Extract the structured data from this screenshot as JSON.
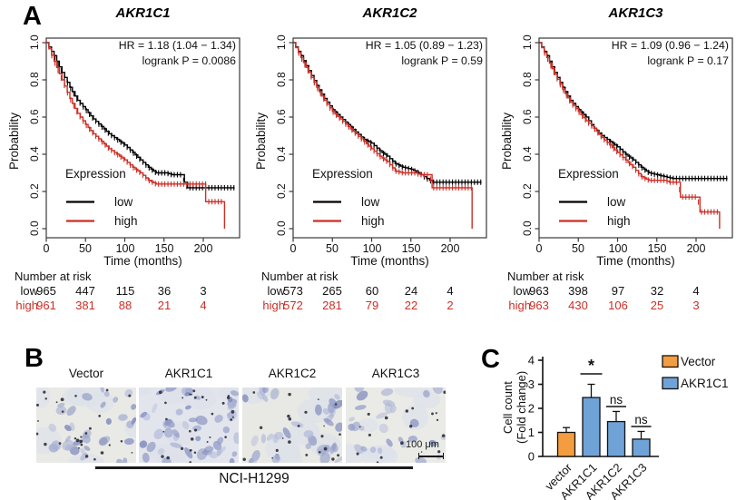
{
  "panels": {
    "a_label": "A",
    "b_label": "B",
    "c_label": "C"
  },
  "km_common": {
    "ylabel": "Probability",
    "xlabel": "Time (months)",
    "x_ticks": [
      0,
      50,
      100,
      150,
      200
    ],
    "y_ticks": [
      "0.0",
      "0.2",
      "0.4",
      "0.6",
      "0.8",
      "1.0"
    ],
    "legend_title": "Expression",
    "legend_low": "low",
    "legend_high": "high",
    "low_color": "#000000",
    "high_color": "#cc2f26",
    "risk_heading": "Number at risk"
  },
  "km_plots": [
    {
      "title": "AKR1C1",
      "hr_line": "HR = 1.18 (1.04 − 1.34)",
      "logrank_line": "logrank P = 0.0086",
      "risk": {
        "low_label": "low",
        "high_label": "high",
        "low": [
          "965",
          "447",
          "115",
          "36",
          "3"
        ],
        "high": [
          "961",
          "381",
          "88",
          "21",
          "4"
        ]
      }
    },
    {
      "title": "AKR1C2",
      "hr_line": "HR = 1.05 (0.89 − 1.23)",
      "logrank_line": "logrank P = 0.59",
      "risk": {
        "low_label": "low",
        "high_label": "high",
        "low": [
          "573",
          "265",
          "60",
          "24",
          "4"
        ],
        "high": [
          "572",
          "281",
          "79",
          "22",
          "2"
        ]
      }
    },
    {
      "title": "AKR1C3",
      "hr_line": "HR = 1.09 (0.96 − 1.24)",
      "logrank_line": "logrank P = 0.17",
      "risk": {
        "low_label": "low",
        "high_label": "high",
        "low": [
          "963",
          "398",
          "97",
          "32",
          "4"
        ],
        "high": [
          "963",
          "430",
          "106",
          "25",
          "3"
        ]
      }
    }
  ],
  "chart_data": [
    {
      "type": "line",
      "subtype": "kaplan-meier",
      "title": "AKR1C1",
      "xlabel": "Time (months)",
      "ylabel": "Probability",
      "xlim": [
        0,
        246
      ],
      "ylim": [
        0.0,
        1.0
      ],
      "grid": false,
      "legend_position": "bottom-left",
      "series": [
        {
          "name": "low",
          "color": "#000000",
          "points": [
            [
              0,
              1.0
            ],
            [
              10,
              0.93
            ],
            [
              20,
              0.84
            ],
            [
              30,
              0.76
            ],
            [
              40,
              0.69
            ],
            [
              50,
              0.64
            ],
            [
              60,
              0.59
            ],
            [
              70,
              0.55
            ],
            [
              80,
              0.51
            ],
            [
              90,
              0.48
            ],
            [
              100,
              0.45
            ],
            [
              110,
              0.41
            ],
            [
              120,
              0.37
            ],
            [
              130,
              0.33
            ],
            [
              140,
              0.3
            ],
            [
              152,
              0.3
            ],
            [
              160,
              0.29
            ],
            [
              172,
              0.29
            ],
            [
              176,
              0.25
            ],
            [
              180,
              0.22
            ],
            [
              240,
              0.22
            ]
          ]
        },
        {
          "name": "high",
          "color": "#cc2f26",
          "points": [
            [
              0,
              1.0
            ],
            [
              10,
              0.9
            ],
            [
              20,
              0.8
            ],
            [
              30,
              0.7
            ],
            [
              40,
              0.62
            ],
            [
              50,
              0.56
            ],
            [
              60,
              0.51
            ],
            [
              70,
              0.47
            ],
            [
              80,
              0.43
            ],
            [
              90,
              0.4
            ],
            [
              100,
              0.37
            ],
            [
              110,
              0.33
            ],
            [
              120,
              0.3
            ],
            [
              130,
              0.26
            ],
            [
              140,
              0.24
            ],
            [
              203,
              0.24
            ],
            [
              203,
              0.145
            ],
            [
              227,
              0.145
            ],
            [
              227,
              0.0
            ]
          ]
        }
      ]
    },
    {
      "type": "line",
      "subtype": "kaplan-meier",
      "title": "AKR1C2",
      "xlabel": "Time (months)",
      "ylabel": "Probability",
      "xlim": [
        0,
        246
      ],
      "ylim": [
        0.0,
        1.0
      ],
      "grid": false,
      "legend_position": "bottom-left",
      "series": [
        {
          "name": "low",
          "color": "#000000",
          "points": [
            [
              0,
              1.0
            ],
            [
              10,
              0.93
            ],
            [
              20,
              0.85
            ],
            [
              30,
              0.77
            ],
            [
              40,
              0.7
            ],
            [
              50,
              0.64
            ],
            [
              60,
              0.6
            ],
            [
              70,
              0.56
            ],
            [
              80,
              0.52
            ],
            [
              90,
              0.48
            ],
            [
              100,
              0.46
            ],
            [
              110,
              0.42
            ],
            [
              120,
              0.39
            ],
            [
              130,
              0.35
            ],
            [
              140,
              0.33
            ],
            [
              150,
              0.32
            ],
            [
              160,
              0.3
            ],
            [
              170,
              0.27
            ],
            [
              178,
              0.25
            ],
            [
              240,
              0.25
            ]
          ]
        },
        {
          "name": "high",
          "color": "#cc2f26",
          "points": [
            [
              0,
              1.0
            ],
            [
              10,
              0.92
            ],
            [
              20,
              0.84
            ],
            [
              30,
              0.76
            ],
            [
              40,
              0.69
            ],
            [
              50,
              0.63
            ],
            [
              60,
              0.59
            ],
            [
              70,
              0.55
            ],
            [
              80,
              0.51
            ],
            [
              90,
              0.47
            ],
            [
              100,
              0.43
            ],
            [
              110,
              0.39
            ],
            [
              120,
              0.36
            ],
            [
              130,
              0.31
            ],
            [
              140,
              0.3
            ],
            [
              155,
              0.3
            ],
            [
              162,
              0.29
            ],
            [
              174,
              0.29
            ],
            [
              177,
              0.22
            ],
            [
              228,
              0.22
            ],
            [
              228,
              0.0
            ]
          ]
        }
      ]
    },
    {
      "type": "line",
      "subtype": "kaplan-meier",
      "title": "AKR1C3",
      "xlabel": "Time (months)",
      "ylabel": "Probability",
      "xlim": [
        0,
        246
      ],
      "ylim": [
        0.0,
        1.0
      ],
      "grid": false,
      "legend_position": "bottom-left",
      "series": [
        {
          "name": "low",
          "color": "#000000",
          "points": [
            [
              0,
              1.0
            ],
            [
              10,
              0.93
            ],
            [
              20,
              0.84
            ],
            [
              30,
              0.76
            ],
            [
              40,
              0.69
            ],
            [
              50,
              0.64
            ],
            [
              60,
              0.6
            ],
            [
              70,
              0.54
            ],
            [
              80,
              0.5
            ],
            [
              90,
              0.47
            ],
            [
              100,
              0.44
            ],
            [
              110,
              0.4
            ],
            [
              120,
              0.37
            ],
            [
              130,
              0.33
            ],
            [
              140,
              0.3
            ],
            [
              150,
              0.29
            ],
            [
              160,
              0.28
            ],
            [
              170,
              0.27
            ],
            [
              240,
              0.27
            ]
          ]
        },
        {
          "name": "high",
          "color": "#cc2f26",
          "points": [
            [
              0,
              1.0
            ],
            [
              10,
              0.92
            ],
            [
              20,
              0.83
            ],
            [
              30,
              0.75
            ],
            [
              40,
              0.68
            ],
            [
              50,
              0.63
            ],
            [
              60,
              0.58
            ],
            [
              70,
              0.54
            ],
            [
              80,
              0.49
            ],
            [
              90,
              0.45
            ],
            [
              100,
              0.41
            ],
            [
              110,
              0.37
            ],
            [
              120,
              0.33
            ],
            [
              130,
              0.28
            ],
            [
              140,
              0.26
            ],
            [
              160,
              0.26
            ],
            [
              166,
              0.25
            ],
            [
              178,
              0.25
            ],
            [
              180,
              0.17
            ],
            [
              202,
              0.17
            ],
            [
              205,
              0.09
            ],
            [
              228,
              0.09
            ],
            [
              230,
              0.0
            ]
          ]
        }
      ]
    },
    {
      "type": "bar",
      "categories": [
        "vector",
        "AKR1C1",
        "AKR1C2",
        "AKR1C3"
      ],
      "values": [
        1.0,
        2.45,
        1.45,
        0.72
      ],
      "errors": [
        0.2,
        0.55,
        0.42,
        0.32
      ],
      "bar_colors": [
        "#f49c40",
        "#6fa3d8",
        "#6fa3d8",
        "#6fa3d8"
      ],
      "significance": [
        "",
        "*",
        "ns",
        "ns"
      ],
      "title": "",
      "ylabel_line1": "Cell count",
      "ylabel_line2": "(Fold change)",
      "ylim": [
        0,
        4
      ],
      "y_ticks": [
        "0",
        "1",
        "2",
        "3",
        "4"
      ],
      "grid": false,
      "legend_position": "top-right",
      "legend": [
        {
          "label": "Vector",
          "color": "#f49c40"
        },
        {
          "label": "AKR1C1",
          "color": "#6fa3d8"
        }
      ]
    }
  ],
  "panel_b": {
    "labels": [
      "Vector",
      "AKR1C1",
      "AKR1C2",
      "AKR1C3"
    ],
    "cell_line": "NCI-H1299",
    "scale_bar": "100 μm"
  }
}
